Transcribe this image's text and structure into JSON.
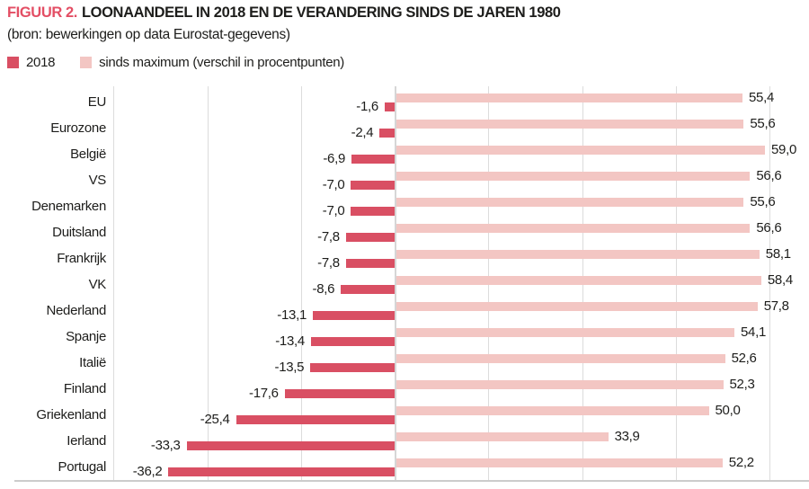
{
  "header": {
    "figure_label": "FIGUUR 2.",
    "title": "LOONAANDEEL IN 2018 EN DE VERANDERING SINDS DE JAREN 1980",
    "source": "(bron: bewerkingen op data Eurostat-gegevens)",
    "accent_color": "#e34e64",
    "text_color": "#1d1d1b"
  },
  "chart_data": {
    "type": "bar",
    "orientation": "horizontal",
    "diverging": true,
    "title": "LOONAANDEEL IN 2018 EN DE VERANDERING SINDS DE JAREN 1980",
    "categories": [
      "EU",
      "Eurozone",
      "België",
      "VS",
      "Denemarken",
      "Duitsland",
      "Frankrijk",
      "VK",
      "Nederland",
      "Spanje",
      "Italië",
      "Finland",
      "Griekenland",
      "Ierland",
      "Portugal"
    ],
    "series": [
      {
        "name": "2018",
        "color": "#d94f63",
        "values": [
          -1.6,
          -2.4,
          -6.9,
          -7.0,
          -7.0,
          -7.8,
          -7.8,
          -8.6,
          -13.1,
          -13.4,
          -13.5,
          -17.6,
          -25.4,
          -33.3,
          -36.2
        ],
        "labels": [
          "-1,6",
          "-2,4",
          "-6,9",
          "-7,0",
          "-7,0",
          "-7,8",
          "-7,8",
          "-8,6",
          "-13,1",
          "-13,4",
          "-13,5",
          "-17,6",
          "-25,4",
          "-33,3",
          "-36,2"
        ]
      },
      {
        "name": "sinds maximum (verschil in procentpunten)",
        "color": "#f3c6c3",
        "values": [
          55.4,
          55.6,
          59.0,
          56.6,
          55.6,
          56.6,
          58.1,
          58.4,
          57.8,
          54.1,
          52.6,
          52.3,
          50.0,
          33.9,
          52.2
        ],
        "labels": [
          "55,4",
          "55,6",
          "59,0",
          "56,6",
          "55,6",
          "56,6",
          "58,1",
          "58,4",
          "57,8",
          "54,1",
          "52,6",
          "52,3",
          "50,0",
          "33,9",
          "52,2"
        ]
      }
    ],
    "xlabel": "",
    "ylabel": "",
    "axis_range": [
      -45,
      60
    ],
    "gridline_step": 15,
    "grid": true,
    "tick_labels_visible": false,
    "value_labels_visible": true,
    "legend_position": "top-left"
  }
}
